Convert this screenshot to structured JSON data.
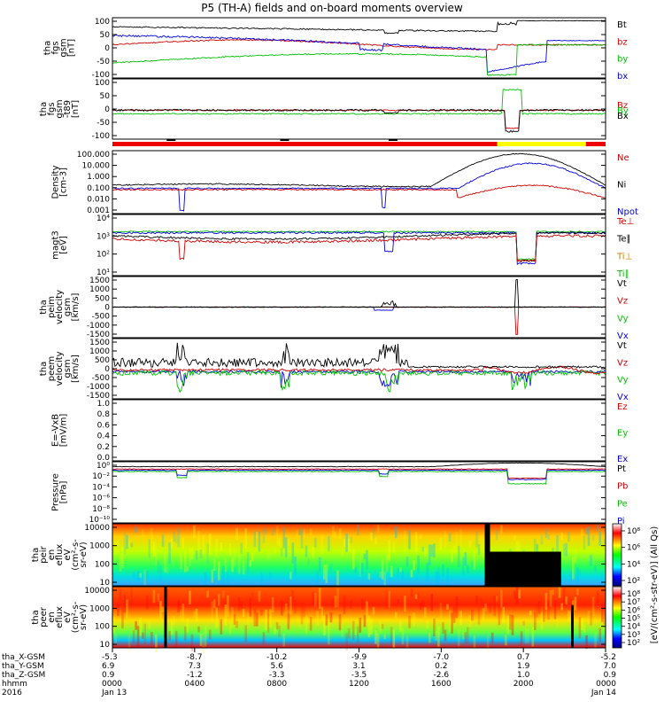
{
  "title": "P5 (TH-A) fields and on-board moments overview",
  "chart_data": [
    {
      "type": "line",
      "panel": "fgs_gsm",
      "ylabel_lines": [
        "tha",
        "fgs",
        "gsm",
        "[nT]"
      ],
      "yticks": [
        "100",
        "50",
        "0",
        "-50",
        "-100"
      ],
      "ylim": [
        -100,
        100
      ],
      "legend": [
        {
          "label": "Bt",
          "color": "#000000"
        },
        {
          "label": "bz",
          "color": "#d00000"
        },
        {
          "label": "by",
          "color": "#00c000"
        },
        {
          "label": "bx",
          "color": "#0000e0"
        }
      ]
    },
    {
      "type": "line",
      "panel": "fgs_gsm_t89",
      "ylabel_lines": [
        "tha",
        "fgs",
        "gsm",
        "-t89",
        "[nT]"
      ],
      "yticks": [
        "100",
        "50",
        "0",
        "-50",
        "-100"
      ],
      "ylim": [
        -120,
        120
      ],
      "legend": [
        {
          "label": "Bz",
          "color": "#d00000"
        },
        {
          "label": "By",
          "color": "#00c000"
        },
        {
          "label": "Bx",
          "color": "#000000"
        }
      ]
    },
    {
      "type": "line",
      "panel": "density",
      "ylabel_lines": [
        "Density",
        "[cm-3]"
      ],
      "yticks": [
        "100.000",
        "10.000",
        "1.000",
        "0.100",
        "0.010",
        "0.001"
      ],
      "log": true,
      "legend": [
        {
          "label": "Ne",
          "color": "#d00000"
        },
        {
          "label": "Ni",
          "color": "#000000"
        },
        {
          "label": "Npot",
          "color": "#0000e0"
        }
      ]
    },
    {
      "type": "line",
      "panel": "temperature",
      "ylabel_lines": [
        "magt3",
        "[eV]"
      ],
      "yticks": [
        "10⁴",
        "10³",
        "10²",
        "10¹"
      ],
      "log": true,
      "legend": [
        {
          "label": "Te⊥",
          "color": "#d00000"
        },
        {
          "label": "Te∥",
          "color": "#000000"
        },
        {
          "label": "Ti⊥",
          "color": "#d08000"
        },
        {
          "label": "Ti∥",
          "color": "#00c000"
        }
      ]
    },
    {
      "type": "line",
      "panel": "peim_velocity",
      "ylabel_lines": [
        "tha",
        "peim",
        "velocity",
        "gsm",
        "[km/s]"
      ],
      "yticks": [
        "1500",
        "1000",
        "500",
        "0",
        "-500",
        "-1000",
        "-1500"
      ],
      "ylim": [
        -1500,
        1500
      ],
      "legend": [
        {
          "label": "Vt",
          "color": "#000000"
        },
        {
          "label": "Vz",
          "color": "#d00000"
        },
        {
          "label": "Vy",
          "color": "#00c000"
        },
        {
          "label": "Vx",
          "color": "#0000e0"
        }
      ]
    },
    {
      "type": "line",
      "panel": "peem_velocity",
      "ylabel_lines": [
        "tha",
        "peem",
        "velocity",
        "gsm",
        "[km/s]"
      ],
      "yticks": [
        "1500",
        "1000",
        "500",
        "0",
        "-500",
        "-1000",
        "-1500"
      ],
      "ylim": [
        -1500,
        1500
      ],
      "legend": [
        {
          "label": "Vt",
          "color": "#000000"
        },
        {
          "label": "Vz",
          "color": "#d00000"
        },
        {
          "label": "Vy",
          "color": "#00c000"
        },
        {
          "label": "Vx",
          "color": "#0000e0"
        }
      ]
    },
    {
      "type": "line",
      "panel": "efield",
      "ylabel_lines": [
        "E=-VxB",
        "[mV/m]"
      ],
      "yticks": [
        "1.0",
        "0.8",
        "0.6",
        "0.4",
        "0.2",
        "0.0"
      ],
      "ylim": [
        0,
        1
      ],
      "legend": [
        {
          "label": "Ez",
          "color": "#d00000"
        },
        {
          "label": "Ey",
          "color": "#00c000"
        },
        {
          "label": "Ex",
          "color": "#0000e0"
        }
      ]
    },
    {
      "type": "line",
      "panel": "pressure",
      "ylabel_lines": [
        "Pressure",
        "[nPa]"
      ],
      "yticks": [
        "10⁰",
        "10⁻²",
        "10⁻⁴",
        "10⁻⁶",
        "10⁻⁸",
        "10⁻¹⁰"
      ],
      "log": true,
      "legend": [
        {
          "label": "Pt",
          "color": "#000000"
        },
        {
          "label": "Pb",
          "color": "#d00000"
        },
        {
          "label": "Pe",
          "color": "#00c000"
        },
        {
          "label": "Pi",
          "color": "#0000e0"
        }
      ]
    },
    {
      "type": "heatmap",
      "panel": "peir_en_eflux",
      "ylabel_lines": [
        "tha",
        "peir",
        "en",
        "eflux",
        "eV",
        "(cm²-s-",
        "sr-eV)"
      ],
      "yticks": [
        "10000",
        "1000",
        "100",
        "10"
      ],
      "log": true
    },
    {
      "type": "heatmap",
      "panel": "peer_en_eflux",
      "ylabel_lines": [
        "tha",
        "peer",
        "en",
        "eflux",
        "eV",
        "(cm²-s-",
        "sr-eV)"
      ],
      "yticks": [
        "10000",
        "1000",
        "100",
        "10"
      ],
      "log": true
    }
  ],
  "colorbar": {
    "label": "[eV/(cm²-s-str-eV)] (All Qs)",
    "ticks": [
      "10⁸",
      "10⁶",
      "10⁴",
      "10²"
    ],
    "ticks_lower": [
      "10⁸",
      "10⁷",
      "10⁶",
      "10⁵",
      "10⁴",
      "10³",
      "10²"
    ]
  },
  "xaxis": {
    "row_labels": [
      "tha_X-GSM",
      "tha_Y-GSM",
      "tha_Z-GSM",
      "hhmm",
      "2016"
    ],
    "columns": [
      [
        "-5.3",
        "6.9",
        "0.9",
        "0000",
        "Jan 13"
      ],
      [
        "-8.7",
        "7.3",
        "-1.2",
        "0400",
        ""
      ],
      [
        "-10.2",
        "5.6",
        "-3.3",
        "0800",
        ""
      ],
      [
        "-9.9",
        "3.1",
        "-3.5",
        "1200",
        ""
      ],
      [
        "-7.0",
        "0.2",
        "-2.6",
        "1600",
        ""
      ],
      [
        "0.7",
        "1.9",
        "1.0",
        "2000",
        ""
      ],
      [
        "-5.2",
        "7.0",
        "0.9",
        "0000",
        "Jan 14"
      ]
    ]
  },
  "mode_bar": {
    "colors": {
      "red": "#ee0000",
      "yellow": "#ffff00"
    }
  },
  "colors": {
    "black": "#000000",
    "red": "#d00000",
    "green": "#00c000",
    "blue": "#0000e0"
  }
}
